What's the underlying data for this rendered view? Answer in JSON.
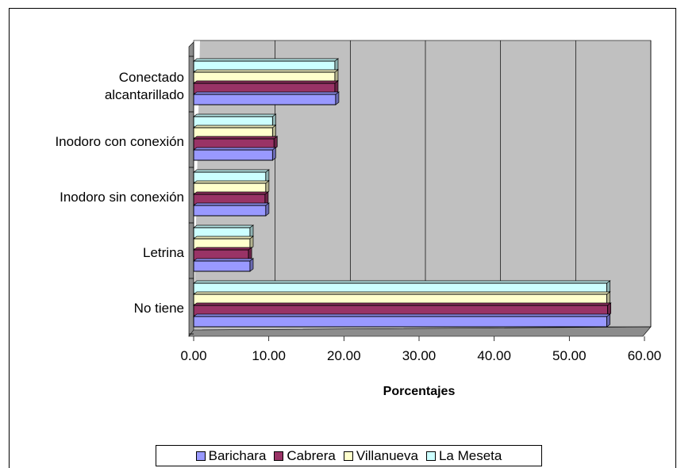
{
  "chart_data": {
    "type": "bar",
    "orientation": "horizontal",
    "categories": [
      "Conectado alcantarillado",
      "Inodoro con conexión",
      "Inodoro sin conexión",
      "Letrina",
      "No tiene"
    ],
    "category_lines": [
      [
        "Conectado",
        "alcantarillado"
      ],
      [
        "Inodoro con conexión"
      ],
      [
        "Inodoro sin conexión"
      ],
      [
        "Letrina"
      ],
      [
        "No tiene"
      ]
    ],
    "series": [
      {
        "name": "Barichara",
        "color": "#9999FF",
        "values": [
          18.9,
          10.5,
          9.6,
          7.5,
          55.0
        ]
      },
      {
        "name": "Cabrera",
        "color": "#993366",
        "values": [
          18.8,
          10.7,
          9.5,
          7.3,
          55.1
        ]
      },
      {
        "name": "Villanueva",
        "color": "#FFFFCC",
        "values": [
          18.8,
          10.5,
          9.6,
          7.5,
          55.0
        ]
      },
      {
        "name": "La Meseta",
        "color": "#CCFFFF",
        "values": [
          18.8,
          10.5,
          9.6,
          7.5,
          55.0
        ]
      }
    ],
    "xlabel": "Porcentajes",
    "ylabel": "",
    "xlim": [
      0,
      60
    ],
    "xticks": [
      "0.00",
      "10.00",
      "20.00",
      "30.00",
      "40.00",
      "50.00",
      "60.00"
    ],
    "grid": true,
    "plot_background": "#C0C0C0",
    "legend_position": "bottom"
  }
}
